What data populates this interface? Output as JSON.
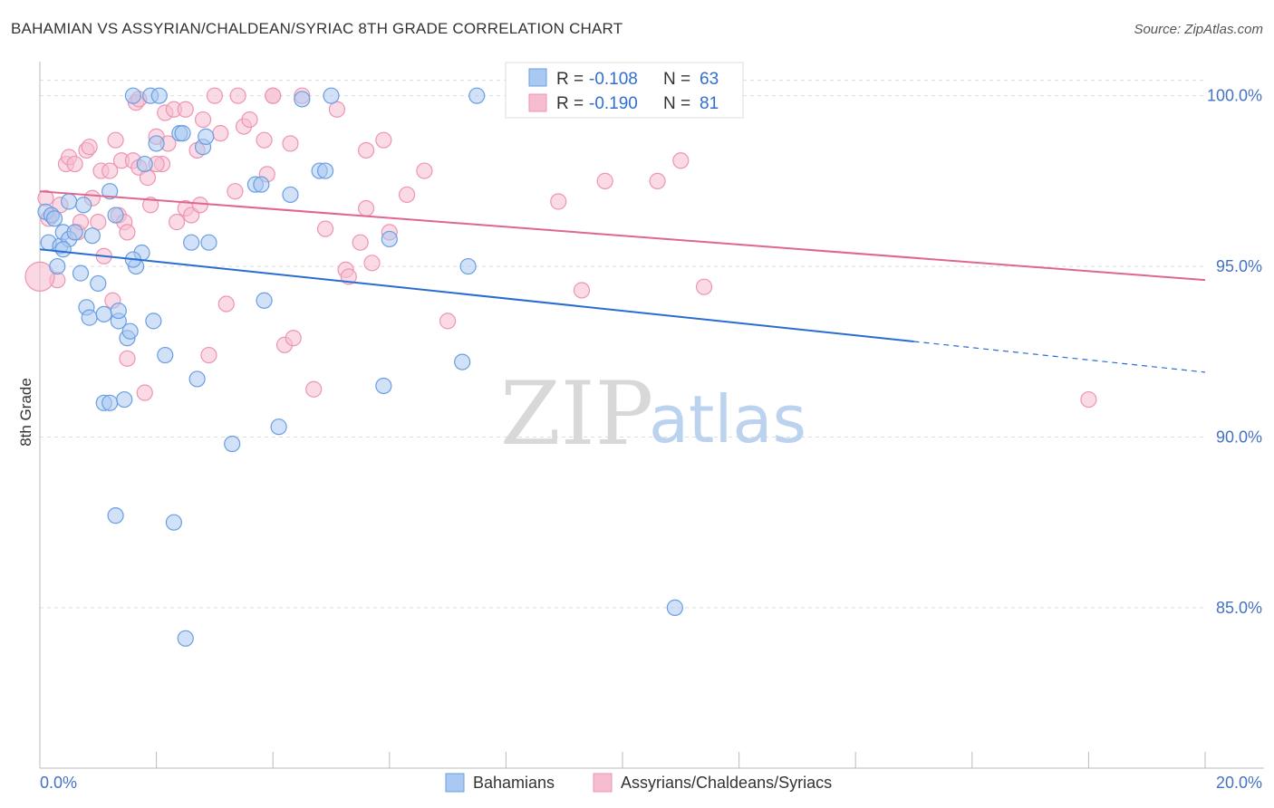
{
  "title": "BAHAMIAN VS ASSYRIAN/CHALDEAN/SYRIAC 8TH GRADE CORRELATION CHART",
  "source": "Source: ZipAtlas.com",
  "watermark": {
    "zip": "ZIP",
    "atlas": "atlas"
  },
  "colors": {
    "blue_fill": "#a9c8f2",
    "blue_stroke": "#6b9ee0",
    "blue_line": "#2a6dd0",
    "pink_fill": "#f6bdd0",
    "pink_stroke": "#ee94b2",
    "pink_line": "#e0668f",
    "axis_text": "#4472c4",
    "grid": "#dddddd"
  },
  "legend": {
    "rows": [
      {
        "r_label": "R =",
        "r_value": "-0.108",
        "n_label": "N =",
        "n_value": "63"
      },
      {
        "r_label": "R =",
        "r_value": "-0.190",
        "n_label": "N =",
        "n_value": "81"
      }
    ]
  },
  "chart_data": {
    "type": "scatter",
    "title": "BAHAMIAN VS ASSYRIAN/CHALDEAN/SYRIAC 8TH GRADE CORRELATION CHART",
    "xlabel": "",
    "ylabel": "8th Grade",
    "xlim": [
      0.0,
      20.0
    ],
    "ylim": [
      80.3,
      101.0
    ],
    "x_tick_labels": [
      "0.0%",
      "20.0%"
    ],
    "y_ticks": [
      85.0,
      90.0,
      95.0,
      100.0
    ],
    "y_tick_labels": [
      "85.0%",
      "90.0%",
      "95.0%",
      "100.0%"
    ],
    "grid": true,
    "legend_position": "top-center",
    "series": [
      {
        "name": "Bahamians",
        "r": -0.108,
        "n": 63,
        "trend": {
          "x_start": 0.0,
          "y_start": 95.5,
          "x_solid_end": 15.0,
          "y_solid_end": 92.8,
          "x_end": 20.0,
          "y_end": 91.9
        },
        "points": [
          [
            0.1,
            96.6
          ],
          [
            0.2,
            96.5
          ],
          [
            0.15,
            95.7
          ],
          [
            0.3,
            95.0
          ],
          [
            0.35,
            95.6
          ],
          [
            0.4,
            96.0
          ],
          [
            0.5,
            95.8
          ],
          [
            0.5,
            96.9
          ],
          [
            0.6,
            96.0
          ],
          [
            0.7,
            94.8
          ],
          [
            0.75,
            96.8
          ],
          [
            0.8,
            93.8
          ],
          [
            0.85,
            93.5
          ],
          [
            0.9,
            95.9
          ],
          [
            1.0,
            94.5
          ],
          [
            1.1,
            93.6
          ],
          [
            1.1,
            91.0
          ],
          [
            1.2,
            91.0
          ],
          [
            1.2,
            97.2
          ],
          [
            1.3,
            87.7
          ],
          [
            1.3,
            96.5
          ],
          [
            1.35,
            93.4
          ],
          [
            1.35,
            93.7
          ],
          [
            1.45,
            91.1
          ],
          [
            1.5,
            92.9
          ],
          [
            1.55,
            93.1
          ],
          [
            1.6,
            100.0
          ],
          [
            1.65,
            95.0
          ],
          [
            1.75,
            95.4
          ],
          [
            1.8,
            98.0
          ],
          [
            1.9,
            100.0
          ],
          [
            1.95,
            93.4
          ],
          [
            2.0,
            98.6
          ],
          [
            2.05,
            100.0
          ],
          [
            2.15,
            92.4
          ],
          [
            2.3,
            87.5
          ],
          [
            2.4,
            98.9
          ],
          [
            2.45,
            98.9
          ],
          [
            2.5,
            84.1
          ],
          [
            2.6,
            95.7
          ],
          [
            2.7,
            91.7
          ],
          [
            2.8,
            98.5
          ],
          [
            2.85,
            98.8
          ],
          [
            2.9,
            95.7
          ],
          [
            3.3,
            89.8
          ],
          [
            3.7,
            97.4
          ],
          [
            3.8,
            97.4
          ],
          [
            3.85,
            94.0
          ],
          [
            4.1,
            90.3
          ],
          [
            4.3,
            97.1
          ],
          [
            4.5,
            99.9
          ],
          [
            4.8,
            97.8
          ],
          [
            4.9,
            97.8
          ],
          [
            5.0,
            100.0
          ],
          [
            5.9,
            91.5
          ],
          [
            6.0,
            95.8
          ],
          [
            7.25,
            92.2
          ],
          [
            7.35,
            95.0
          ],
          [
            7.5,
            100.0
          ],
          [
            10.9,
            85.0
          ],
          [
            0.4,
            95.5
          ],
          [
            1.6,
            95.2
          ],
          [
            0.25,
            96.4
          ]
        ]
      },
      {
        "name": "Assyrians/Chaldeans/Syriacs",
        "r": -0.19,
        "n": 81,
        "trend": {
          "x_start": 0.0,
          "y_start": 97.2,
          "x_end": 20.0,
          "y_end": 94.6
        },
        "points": [
          [
            0.1,
            97.0
          ],
          [
            0.15,
            96.4
          ],
          [
            0.2,
            96.5
          ],
          [
            0.3,
            94.6
          ],
          [
            0.45,
            98.0
          ],
          [
            0.5,
            98.2
          ],
          [
            0.6,
            98.0
          ],
          [
            0.65,
            96.0
          ],
          [
            0.7,
            96.3
          ],
          [
            0.8,
            98.4
          ],
          [
            0.85,
            98.5
          ],
          [
            0.9,
            97.0
          ],
          [
            1.0,
            96.3
          ],
          [
            1.05,
            97.8
          ],
          [
            1.1,
            95.3
          ],
          [
            1.2,
            97.8
          ],
          [
            1.25,
            94.0
          ],
          [
            1.3,
            98.7
          ],
          [
            1.35,
            96.5
          ],
          [
            1.4,
            98.1
          ],
          [
            1.45,
            96.3
          ],
          [
            1.5,
            92.3
          ],
          [
            1.5,
            96.0
          ],
          [
            1.6,
            98.1
          ],
          [
            1.65,
            99.8
          ],
          [
            1.7,
            97.9
          ],
          [
            1.8,
            91.3
          ],
          [
            1.85,
            97.6
          ],
          [
            1.9,
            96.8
          ],
          [
            2.0,
            98.8
          ],
          [
            2.1,
            98.0
          ],
          [
            2.15,
            99.5
          ],
          [
            2.2,
            98.6
          ],
          [
            2.3,
            99.6
          ],
          [
            2.35,
            96.3
          ],
          [
            2.5,
            99.6
          ],
          [
            2.5,
            96.7
          ],
          [
            2.6,
            96.5
          ],
          [
            2.7,
            98.4
          ],
          [
            2.75,
            96.8
          ],
          [
            2.8,
            99.3
          ],
          [
            2.9,
            92.4
          ],
          [
            3.0,
            100.0
          ],
          [
            3.1,
            98.9
          ],
          [
            3.2,
            93.9
          ],
          [
            3.35,
            97.2
          ],
          [
            3.4,
            100.0
          ],
          [
            3.5,
            99.1
          ],
          [
            3.6,
            99.3
          ],
          [
            3.85,
            98.7
          ],
          [
            3.9,
            97.7
          ],
          [
            4.0,
            100.0
          ],
          [
            4.2,
            92.7
          ],
          [
            4.3,
            98.6
          ],
          [
            4.35,
            92.9
          ],
          [
            4.5,
            100.0
          ],
          [
            4.7,
            91.4
          ],
          [
            4.9,
            96.1
          ],
          [
            5.1,
            99.6
          ],
          [
            5.25,
            94.9
          ],
          [
            5.3,
            94.7
          ],
          [
            5.5,
            95.7
          ],
          [
            5.6,
            98.4
          ],
          [
            5.6,
            96.7
          ],
          [
            5.7,
            95.1
          ],
          [
            5.9,
            98.7
          ],
          [
            6.0,
            96.0
          ],
          [
            6.3,
            97.1
          ],
          [
            6.6,
            97.8
          ],
          [
            7.0,
            93.4
          ],
          [
            8.9,
            96.9
          ],
          [
            9.3,
            94.3
          ],
          [
            9.7,
            97.5
          ],
          [
            10.6,
            97.5
          ],
          [
            11.0,
            98.1
          ],
          [
            11.4,
            94.4
          ],
          [
            18.0,
            91.1
          ],
          [
            1.7,
            99.9
          ],
          [
            4.0,
            100.0
          ],
          [
            0.35,
            96.8
          ],
          [
            2.0,
            98.0
          ]
        ]
      }
    ],
    "legend_entries": [
      "Bahamians",
      "Assyrians/Chaldeans/Syriacs"
    ]
  }
}
